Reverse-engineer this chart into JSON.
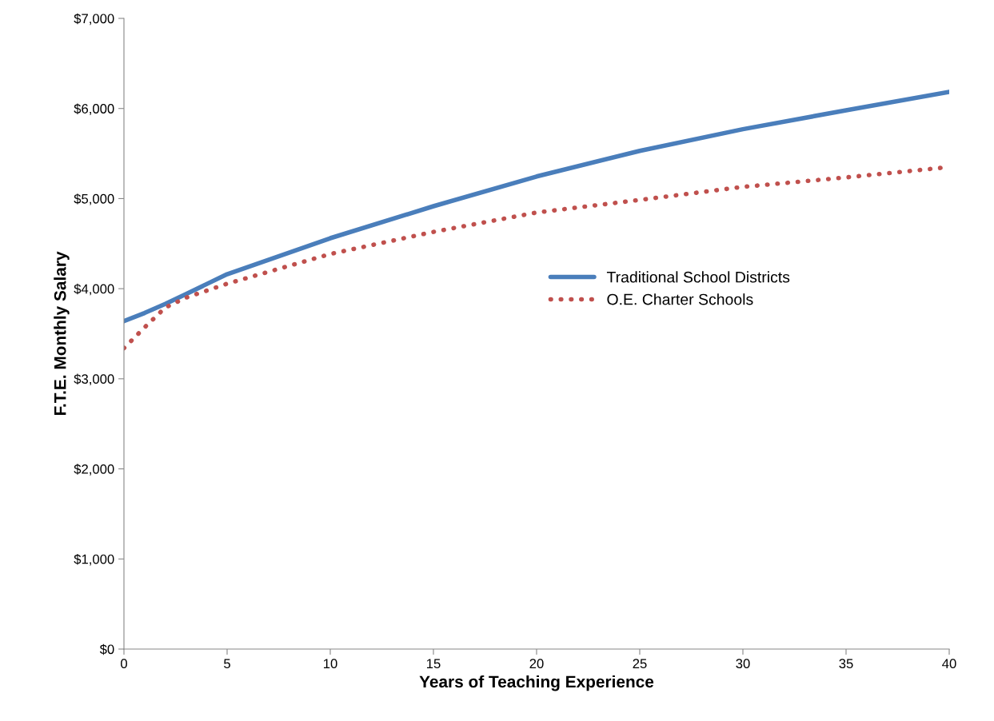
{
  "chart_data": {
    "type": "line",
    "xlabel": "Years of Teaching Experience",
    "ylabel": "F.T.E. Monthly Salary",
    "xlim": [
      0,
      40
    ],
    "xticks": [
      0,
      5,
      10,
      15,
      20,
      25,
      30,
      35,
      40
    ],
    "ylim": [
      0,
      7000
    ],
    "yticks": [
      {
        "value": 0,
        "label": "$0"
      },
      {
        "value": 1000,
        "label": "$1,000"
      },
      {
        "value": 2000,
        "label": "$2,000"
      },
      {
        "value": 3000,
        "label": "$3,000"
      },
      {
        "value": 4000,
        "label": "$4,000"
      },
      {
        "value": 5000,
        "label": "$5,000"
      },
      {
        "value": 6000,
        "label": "$6,000"
      },
      {
        "value": 7000,
        "label": "$7,000"
      }
    ],
    "grid": false,
    "legend": "right",
    "series": [
      {
        "name": "Traditional School Districts",
        "color": "#4a7ebb",
        "line_style": "solid",
        "x": [
          0,
          1,
          2,
          3,
          5,
          10,
          15,
          20,
          25,
          30,
          35,
          40
        ],
        "values": [
          3640,
          3730,
          3830,
          3940,
          4160,
          4560,
          4915,
          5245,
          5530,
          5770,
          5980,
          6185
        ]
      },
      {
        "name": "O.E. Charter Schools",
        "color": "#c0504d",
        "line_style": "dotted",
        "x": [
          0,
          1,
          2,
          3,
          5,
          10,
          15,
          20,
          25,
          30,
          35,
          40
        ],
        "values": [
          3340,
          3570,
          3790,
          3900,
          4055,
          4385,
          4630,
          4845,
          4985,
          5130,
          5235,
          5350
        ]
      }
    ]
  }
}
